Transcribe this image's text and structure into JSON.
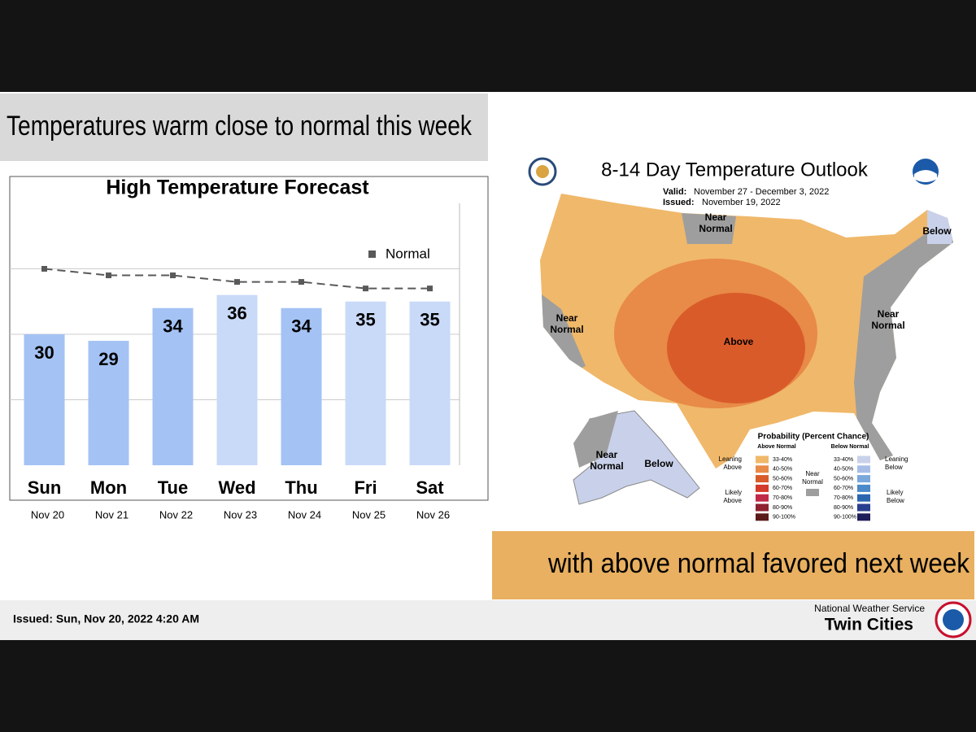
{
  "slide": {
    "headline": "Temperatures warm close to normal this week",
    "subheadline": "with above normal favored next week"
  },
  "chart_data": {
    "type": "bar",
    "title": "High Temperature Forecast",
    "categories": [
      "Sun",
      "Mon",
      "Tue",
      "Wed",
      "Thu",
      "Fri",
      "Sat"
    ],
    "dates": [
      "Nov 20",
      "Nov 21",
      "Nov 22",
      "Nov 23",
      "Nov 24",
      "Nov 25",
      "Nov 26"
    ],
    "series": [
      {
        "type": "bar",
        "colors": [
          "#a4c2f4",
          "#a4c2f4",
          "#a4c2f4",
          "#c9daf8",
          "#a4c2f4",
          "#c9daf8",
          "#c9daf8"
        ],
        "values": [
          30,
          29,
          34,
          36,
          34,
          35,
          35
        ]
      },
      {
        "type": "line",
        "name": "Normal",
        "color": "#595959",
        "values": [
          40,
          39,
          39,
          38,
          38,
          37,
          37
        ]
      }
    ],
    "ylim": [
      10,
      50
    ],
    "yticks": [
      20,
      30,
      40
    ],
    "grid": true,
    "legend": "top-right"
  },
  "map": {
    "title": "8-14 Day Temperature Outlook",
    "valid_label": "Valid:",
    "valid": "November 27 - December 3, 2022",
    "issued_label": "Issued:",
    "issued": "November 19, 2022",
    "regions": [
      {
        "lines": [
          "Near",
          "Normal"
        ]
      },
      {
        "lines": [
          "Below"
        ]
      },
      {
        "lines": [
          "Near",
          "Normal"
        ]
      },
      {
        "lines": [
          "Near",
          "Normal"
        ]
      },
      {
        "lines": [
          "Above"
        ]
      },
      {
        "lines": [
          "Near",
          "Normal"
        ]
      },
      {
        "lines": [
          "Below"
        ]
      }
    ],
    "legend": {
      "title": "Probability (Percent Chance)",
      "above_title": "Above Normal",
      "below_title": "Below Normal",
      "leaning_above": [
        "Leaning",
        "Above"
      ],
      "likely_above": [
        "Likely",
        "Above"
      ],
      "near": [
        "Near",
        "Normal"
      ],
      "leaning_below": [
        "Leaning",
        "Below"
      ],
      "likely_below": [
        "Likely",
        "Below"
      ],
      "ranges": [
        "33-40%",
        "40-50%",
        "50-60%",
        "60-70%",
        "70-80%",
        "80-90%",
        "90-100%"
      ]
    }
  },
  "footer": {
    "issued": "Issued: Sun, Nov 20, 2022 4:20 AM",
    "agency": "National Weather Service",
    "office": "Twin Cities"
  }
}
